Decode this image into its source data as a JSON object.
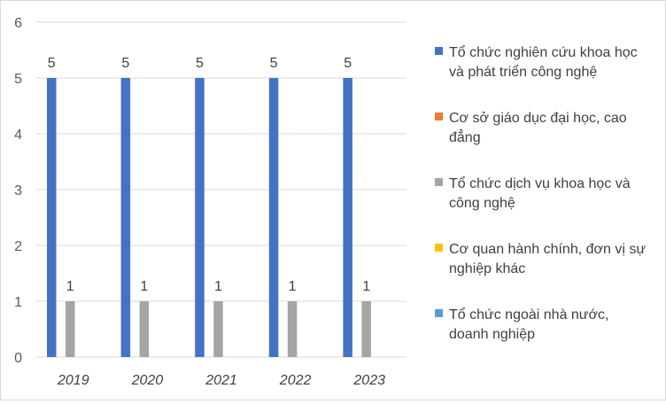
{
  "chart_data": {
    "type": "bar",
    "categories": [
      "2019",
      "2020",
      "2021",
      "2022",
      "2023"
    ],
    "series": [
      {
        "name": "Tổ chức nghiên cứu khoa học và phát triển công nghệ",
        "color": "#4472c4",
        "values": [
          5,
          5,
          5,
          5,
          5
        ]
      },
      {
        "name": "Cơ sở giáo dục đại học, cao đẳng",
        "color": "#ed7d31",
        "values": [
          0,
          0,
          0,
          0,
          0
        ]
      },
      {
        "name": "Tổ chức dịch vụ khoa học và công nghệ",
        "color": "#a5a5a5",
        "values": [
          1,
          1,
          1,
          1,
          1
        ]
      },
      {
        "name": "Cơ quan hành chính, đơn vị sự nghiệp khác",
        "color": "#ffc000",
        "values": [
          0,
          0,
          0,
          0,
          0
        ]
      },
      {
        "name": "Tổ chức ngoài nhà nước, doanh nghiệp",
        "color": "#5b9bd5",
        "values": [
          0,
          0,
          0,
          0,
          0
        ]
      }
    ],
    "legend_lines": [
      [
        "Tổ chức nghiên cứu khoa học",
        "và phát triển công nghệ"
      ],
      [
        "Cơ sở giáo dục đại học, cao",
        "đẳng"
      ],
      [
        "Tổ chức dịch vụ khoa học và",
        "công nghệ"
      ],
      [
        "Cơ quan hành chính, đơn vị sự",
        "nghiệp khác"
      ],
      [
        "Tổ chức ngoài nhà nước,",
        "doanh nghiệp"
      ]
    ],
    "data_labels_shown_for_nonzero": true,
    "ylim": [
      0,
      6
    ],
    "yticks": [
      0,
      1,
      2,
      3,
      4,
      5,
      6
    ],
    "grid": true,
    "legend_position": "right",
    "title": "",
    "xlabel": "",
    "ylabel": ""
  }
}
